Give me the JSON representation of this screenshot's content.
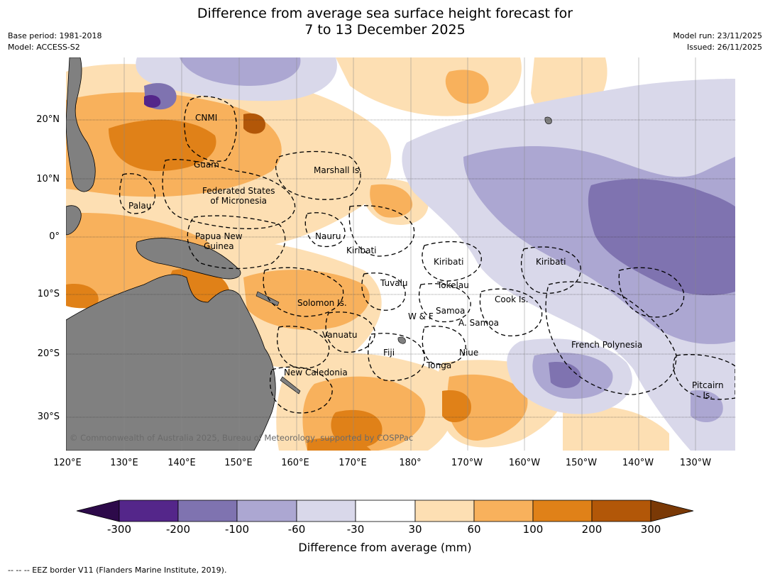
{
  "title": {
    "line1": "Difference from average sea surface height forecast for",
    "line2": "7 to 13 December 2025"
  },
  "meta_left": {
    "base_period": "Base period: 1981-2018",
    "model": "Model: ACCESS-S2"
  },
  "meta_right": {
    "model_run": "Model run: 23/11/2025",
    "issued": "Issued: 26/11/2025"
  },
  "axes": {
    "lat_labels": [
      "20°N",
      "10°N",
      "0°",
      "10°S",
      "20°S",
      "30°S"
    ],
    "lon_labels": [
      "120°E",
      "130°E",
      "140°E",
      "150°E",
      "160°E",
      "170°E",
      "180°",
      "170°W",
      "160°W",
      "150°W",
      "140°W",
      "130°W"
    ]
  },
  "places": {
    "cnmi": "CNMI",
    "guam": "Guam",
    "marshall": "Marshall Is.",
    "fsm_1": "Federated States",
    "fsm_2": "of Micronesia",
    "palau": "Palau",
    "png_1": "Papua New",
    "png_2": "Guinea",
    "nauru": "Nauru",
    "kiribati_w": "Kiribati",
    "kiribati_c": "Kiribati",
    "kiribati_e": "Kiribati",
    "tuvalu": "Tuvalu",
    "tokelau": "Tokelau",
    "cook": "Cook Is.",
    "solomon": "Solomon Is.",
    "wf": "W & F",
    "samoa": "Samoa",
    "asamoa": "A. Samoa",
    "vanuatu": "Vanuatu",
    "fiji": "Fiji",
    "niue": "Niue",
    "fp": "French Polynesia",
    "tonga": "Tonga",
    "nc": "New Caledonia",
    "pitcairn_1": "Pitcairn",
    "pitcairn_2": "Is."
  },
  "copyright": "© Commonwealth of Australia 2025, Bureau of Meteorology, supported by COSPPac",
  "colorbar": {
    "title": "Difference from average (mm)",
    "ticks": [
      "-300",
      "-200",
      "-100",
      "-60",
      "-30",
      "30",
      "60",
      "100",
      "200",
      "300"
    ],
    "colors": {
      "below_min": "#2d0a4a",
      "c1": "#54268a",
      "c2": "#7f73b0",
      "c3": "#aca7d2",
      "c4": "#d9d8ea",
      "c5": "#ffffff",
      "c6": "#fddfb3",
      "c7": "#f8b15c",
      "c8": "#e08118",
      "c9": "#b25708",
      "above_max": "#7a3906"
    }
  },
  "land_color": "#808080",
  "eez_note": "--  --  -- EEZ border V11 (Flanders Marine Institute, 2019)."
}
